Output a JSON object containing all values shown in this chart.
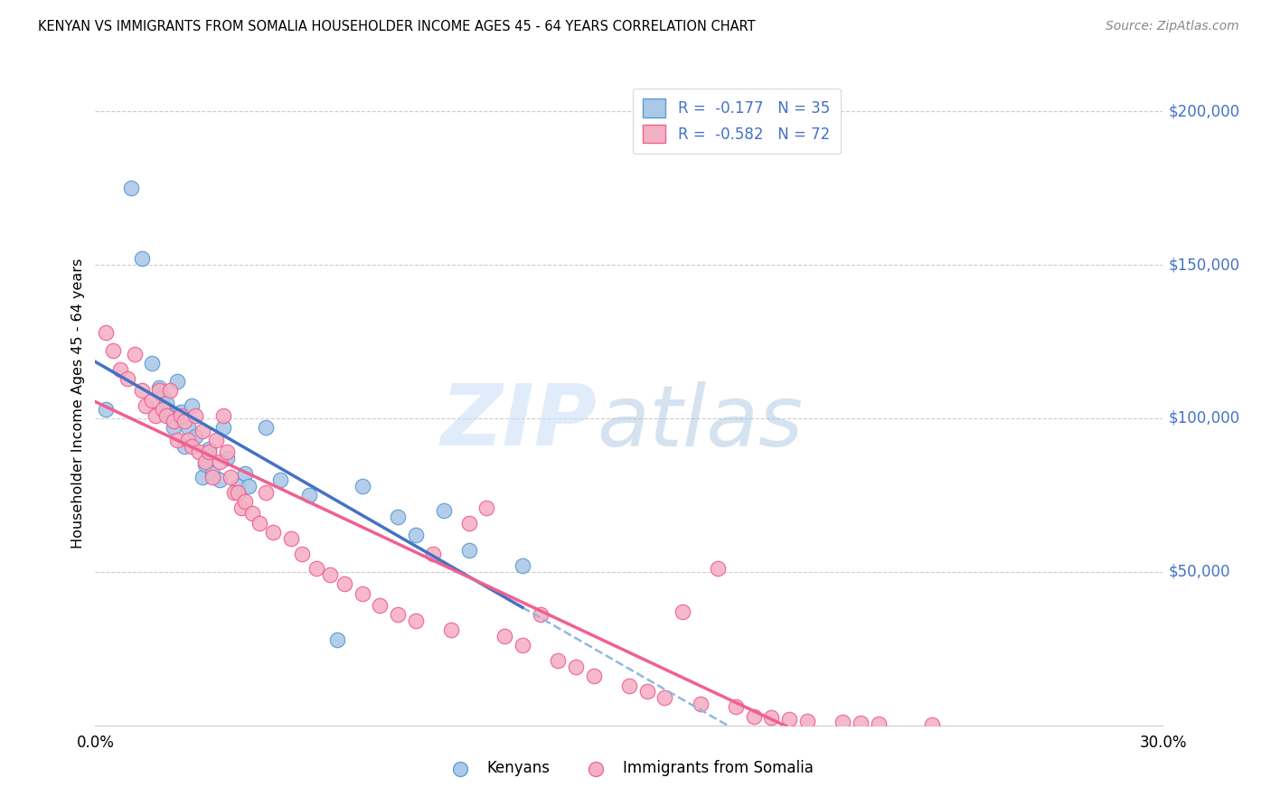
{
  "title": "KENYAN VS IMMIGRANTS FROM SOMALIA HOUSEHOLDER INCOME AGES 45 - 64 YEARS CORRELATION CHART",
  "source": "Source: ZipAtlas.com",
  "ylabel": "Householder Income Ages 45 - 64 years",
  "xlim": [
    0.0,
    0.3
  ],
  "ylim": [
    0,
    210000
  ],
  "kenyan_color": "#aac8e8",
  "kenyan_edge_color": "#5b9bd5",
  "somalia_color": "#f4b0c4",
  "somalia_edge_color": "#f06090",
  "kenyan_line_color": "#4472c4",
  "somalia_line_color": "#f06090",
  "dashed_line_color": "#90b8e0",
  "grid_color": "#cccccc",
  "right_tick_color": "#4472c4",
  "kenyan_x": [
    0.003,
    0.01,
    0.013,
    0.016,
    0.018,
    0.019,
    0.02,
    0.021,
    0.022,
    0.023,
    0.024,
    0.025,
    0.026,
    0.027,
    0.028,
    0.03,
    0.031,
    0.032,
    0.033,
    0.035,
    0.036,
    0.037,
    0.04,
    0.042,
    0.043,
    0.048,
    0.052,
    0.06,
    0.068,
    0.075,
    0.085,
    0.09,
    0.098,
    0.105,
    0.12
  ],
  "kenyan_y": [
    103000,
    175000,
    152000,
    118000,
    110000,
    107000,
    105000,
    101000,
    97000,
    112000,
    102000,
    91000,
    97000,
    104000,
    94000,
    81000,
    85000,
    90000,
    82000,
    80000,
    97000,
    87000,
    78000,
    82000,
    78000,
    97000,
    80000,
    75000,
    28000,
    78000,
    68000,
    62000,
    70000,
    57000,
    52000
  ],
  "somalia_x": [
    0.003,
    0.005,
    0.007,
    0.009,
    0.011,
    0.013,
    0.014,
    0.016,
    0.017,
    0.018,
    0.019,
    0.02,
    0.021,
    0.022,
    0.023,
    0.024,
    0.025,
    0.026,
    0.027,
    0.028,
    0.029,
    0.03,
    0.031,
    0.032,
    0.033,
    0.034,
    0.035,
    0.036,
    0.037,
    0.038,
    0.039,
    0.04,
    0.041,
    0.042,
    0.044,
    0.046,
    0.048,
    0.05,
    0.055,
    0.058,
    0.062,
    0.066,
    0.07,
    0.075,
    0.08,
    0.085,
    0.09,
    0.095,
    0.1,
    0.105,
    0.11,
    0.115,
    0.12,
    0.125,
    0.13,
    0.135,
    0.14,
    0.15,
    0.155,
    0.16,
    0.165,
    0.17,
    0.175,
    0.18,
    0.185,
    0.19,
    0.195,
    0.2,
    0.21,
    0.215,
    0.22,
    0.235
  ],
  "somalia_y": [
    128000,
    122000,
    116000,
    113000,
    121000,
    109000,
    104000,
    106000,
    101000,
    109000,
    103000,
    101000,
    109000,
    99000,
    93000,
    101000,
    99000,
    93000,
    91000,
    101000,
    89000,
    96000,
    86000,
    89000,
    81000,
    93000,
    86000,
    101000,
    89000,
    81000,
    76000,
    76000,
    71000,
    73000,
    69000,
    66000,
    76000,
    63000,
    61000,
    56000,
    51000,
    49000,
    46000,
    43000,
    39000,
    36000,
    34000,
    56000,
    31000,
    66000,
    71000,
    29000,
    26000,
    36000,
    21000,
    19000,
    16000,
    13000,
    11000,
    9000,
    37000,
    7000,
    51000,
    6000,
    3000,
    2500,
    2000,
    1500,
    1200,
    800,
    600,
    300
  ]
}
